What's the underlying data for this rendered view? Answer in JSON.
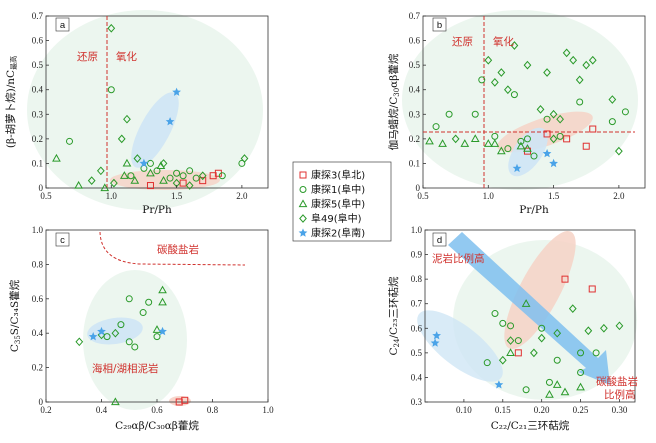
{
  "colors": {
    "kt3": "#e03030",
    "kt1": "#2a9a2a",
    "kt5": "#2a9a2a",
    "f49": "#2a9a2a",
    "kt2": "#4aa3e8",
    "green_zone": "#dcefe2",
    "red_zone": "#f6d2c6",
    "blue_zone": "#cfe6f5",
    "arrow": "#7fbfee",
    "ref_line": "#d0312d"
  },
  "legend": {
    "items": [
      {
        "key": "kt3",
        "marker": "square",
        "label": "康探3(阜北)"
      },
      {
        "key": "kt1",
        "marker": "circle",
        "label": "康探1(阜中)"
      },
      {
        "key": "kt5",
        "marker": "triangle",
        "label": "康探5(阜中)"
      },
      {
        "key": "f49",
        "marker": "diamond",
        "label": "阜49(阜中)"
      },
      {
        "key": "kt2",
        "marker": "star",
        "label": "康探2(阜南)"
      }
    ]
  },
  "chart_data": [
    {
      "panel": "a",
      "type": "scatter",
      "xlabel": "Pr/Ph",
      "ylabel": "(β-胡萝卜烷)/nC",
      "ylabel_sub": "最高",
      "xlim": [
        0.5,
        2.2
      ],
      "ylim": [
        0,
        0.7
      ],
      "xticks": [
        "0.5",
        "1.0",
        "1.5",
        "2.0"
      ],
      "yticks": [
        "0",
        "0.1",
        "0.2",
        "0.3",
        "0.4",
        "0.5",
        "0.6",
        "0.7"
      ],
      "annotations": [
        "还原",
        "氧化"
      ],
      "vline": 1.0,
      "series": [
        {
          "key": "kt3",
          "points": [
            [
              1.3,
              0.01
            ],
            [
              1.55,
              0.02
            ],
            [
              1.7,
              0.03
            ],
            [
              1.78,
              0.05
            ],
            [
              1.82,
              0.06
            ]
          ]
        },
        {
          "key": "kt1",
          "points": [
            [
              0.68,
              0.19
            ],
            [
              1.0,
              0.4
            ],
            [
              1.15,
              0.05
            ],
            [
              1.25,
              0.08
            ],
            [
              1.3,
              0.1
            ],
            [
              1.35,
              0.07
            ],
            [
              1.45,
              0.04
            ],
            [
              1.5,
              0.06
            ],
            [
              1.55,
              0.05
            ],
            [
              1.6,
              0.07
            ],
            [
              1.65,
              0.04
            ],
            [
              2.0,
              0.1
            ],
            [
              1.85,
              0.05
            ]
          ]
        },
        {
          "key": "kt5",
          "points": [
            [
              0.58,
              0.12
            ],
            [
              0.75,
              0.01
            ],
            [
              0.95,
              0.0
            ],
            [
              1.1,
              0.05
            ],
            [
              1.12,
              0.1
            ],
            [
              1.18,
              0.03
            ],
            [
              1.3,
              0.06
            ],
            [
              1.38,
              0.09
            ],
            [
              1.4,
              0.03
            ]
          ]
        },
        {
          "key": "f49",
          "points": [
            [
              1.0,
              0.65
            ],
            [
              0.92,
              0.07
            ],
            [
              0.85,
              0.03
            ],
            [
              1.02,
              0.02
            ],
            [
              1.08,
              0.2
            ],
            [
              1.12,
              0.28
            ],
            [
              1.2,
              0.12
            ],
            [
              1.4,
              0.1
            ],
            [
              1.5,
              0.02
            ],
            [
              1.6,
              0.01
            ],
            [
              1.7,
              0.05
            ],
            [
              2.02,
              0.12
            ]
          ]
        },
        {
          "key": "kt2",
          "points": [
            [
              1.25,
              0.1
            ],
            [
              1.45,
              0.27
            ],
            [
              1.5,
              0.39
            ]
          ]
        }
      ]
    },
    {
      "panel": "b",
      "type": "scatter",
      "xlabel": "Pr/Ph",
      "ylabel": "伽马蜡烷/C",
      "ylabel_sub": "30",
      "ylabel_tail": "αβ藿烷",
      "xlim": [
        0.5,
        2.2
      ],
      "ylim": [
        0,
        0.7
      ],
      "xticks": [
        "0.5",
        "1.0",
        "1.5",
        "2.0"
      ],
      "yticks": [
        "0",
        "0.1",
        "0.2",
        "0.3",
        "0.4",
        "0.5",
        "0.6",
        "0.7"
      ],
      "annotations": [
        "还原",
        "氧化"
      ],
      "vline": 1.0,
      "hline": 0.2,
      "series": [
        {
          "key": "kt3",
          "points": [
            [
              1.3,
              0.15
            ],
            [
              1.45,
              0.22
            ],
            [
              1.6,
              0.2
            ],
            [
              1.75,
              0.17
            ],
            [
              1.8,
              0.24
            ]
          ]
        },
        {
          "key": "kt1",
          "points": [
            [
              0.95,
              0.44
            ],
            [
              0.9,
              0.3
            ],
            [
              0.7,
              0.3
            ],
            [
              0.6,
              0.25
            ],
            [
              1.05,
              0.21
            ],
            [
              1.15,
              0.16
            ],
            [
              1.25,
              0.19
            ],
            [
              1.35,
              0.13
            ],
            [
              1.3,
              0.2
            ],
            [
              1.55,
              0.21
            ],
            [
              1.7,
              0.35
            ],
            [
              1.95,
              0.27
            ],
            [
              2.05,
              0.31
            ],
            [
              1.2,
              0.38
            ],
            [
              1.45,
              0.28
            ]
          ]
        },
        {
          "key": "kt5",
          "points": [
            [
              0.55,
              0.19
            ],
            [
              0.65,
              0.18
            ],
            [
              0.82,
              0.18
            ],
            [
              0.9,
              0.2
            ],
            [
              1.0,
              0.18
            ],
            [
              1.05,
              0.18
            ],
            [
              1.1,
              0.15
            ],
            [
              1.25,
              0.17
            ],
            [
              1.3,
              0.16
            ]
          ]
        },
        {
          "key": "f49",
          "points": [
            [
              1.0,
              0.52
            ],
            [
              1.1,
              0.47
            ],
            [
              1.2,
              0.58
            ],
            [
              1.05,
              0.43
            ],
            [
              1.15,
              0.4
            ],
            [
              1.3,
              0.5
            ],
            [
              1.4,
              0.32
            ],
            [
              1.45,
              0.47
            ],
            [
              1.5,
              0.3
            ],
            [
              1.55,
              0.28
            ],
            [
              1.6,
              0.55
            ],
            [
              1.65,
              0.52
            ],
            [
              1.7,
              0.44
            ],
            [
              1.75,
              0.5
            ],
            [
              1.8,
              0.52
            ],
            [
              1.95,
              0.36
            ],
            [
              2.0,
              0.15
            ],
            [
              1.5,
              0.2
            ],
            [
              0.75,
              0.2
            ]
          ]
        },
        {
          "key": "kt2",
          "points": [
            [
              1.22,
              0.08
            ],
            [
              1.45,
              0.14
            ],
            [
              1.5,
              0.1
            ]
          ]
        }
      ]
    },
    {
      "panel": "c",
      "type": "scatter",
      "xlabel": "C₂₉αβ/C₃₀αβ藿烷",
      "ylabel": "C",
      "ylabel_sub": "35",
      "ylabel_tail": "S/C₃₄S藿烷",
      "xlim": [
        0.2,
        1.0
      ],
      "ylim": [
        0,
        1.0
      ],
      "xticks": [
        "0.2",
        "0.4",
        "0.6",
        "0.8",
        "1.0"
      ],
      "yticks": [
        "0",
        "0.2",
        "0.4",
        "0.6",
        "0.8",
        "1.0"
      ],
      "annotations": [
        "碳酸盐岩",
        "海相/湖相泥岩"
      ],
      "series": [
        {
          "key": "kt3",
          "points": [
            [
              0.68,
              0.0
            ],
            [
              0.7,
              0.01
            ]
          ]
        },
        {
          "key": "kt1",
          "points": [
            [
              0.42,
              0.38
            ],
            [
              0.47,
              0.45
            ],
            [
              0.5,
              0.6
            ],
            [
              0.57,
              0.58
            ],
            [
              0.6,
              0.38
            ],
            [
              0.5,
              0.35
            ],
            [
              0.55,
              0.52
            ],
            [
              0.52,
              0.32
            ]
          ]
        },
        {
          "key": "kt5",
          "points": [
            [
              0.6,
              0.42
            ],
            [
              0.62,
              0.58
            ],
            [
              0.62,
              0.65
            ],
            [
              0.45,
              0.0
            ]
          ]
        },
        {
          "key": "f49",
          "points": [
            [
              0.32,
              0.35
            ],
            [
              0.4,
              0.39
            ],
            [
              0.45,
              0.4
            ]
          ]
        },
        {
          "key": "kt2",
          "points": [
            [
              0.37,
              0.38
            ],
            [
              0.4,
              0.41
            ],
            [
              0.62,
              0.41
            ]
          ]
        }
      ]
    },
    {
      "panel": "d",
      "type": "scatter",
      "xlabel": "C₂₂/C₂₁三环萜烷",
      "ylabel": "C",
      "ylabel_sub": "24",
      "ylabel_tail": "/C₂₃三环萜烷",
      "xlim": [
        0.05,
        0.32
      ],
      "ylim": [
        0.3,
        1.0
      ],
      "xticks": [
        "0.10",
        "0.15",
        "0.20",
        "0.25",
        "0.30"
      ],
      "yticks": [
        "0.3",
        "0.4",
        "0.5",
        "0.6",
        "0.7",
        "0.8",
        "0.9",
        "1.0"
      ],
      "annotations": [
        "泥岩比例高",
        "碳酸盐岩",
        "比例高"
      ],
      "series": [
        {
          "key": "kt3",
          "points": [
            [
              0.23,
              0.8
            ],
            [
              0.265,
              0.76
            ],
            [
              0.17,
              0.5
            ]
          ]
        },
        {
          "key": "kt1",
          "points": [
            [
              0.14,
              0.66
            ],
            [
              0.16,
              0.61
            ],
            [
              0.17,
              0.55
            ],
            [
              0.2,
              0.6
            ],
            [
              0.22,
              0.47
            ],
            [
              0.25,
              0.42
            ],
            [
              0.27,
              0.5
            ],
            [
              0.15,
              0.62
            ],
            [
              0.13,
              0.46
            ],
            [
              0.25,
              0.5
            ],
            [
              0.18,
              0.35
            ],
            [
              0.21,
              0.38
            ]
          ]
        },
        {
          "key": "kt5",
          "points": [
            [
              0.16,
              0.5
            ],
            [
              0.22,
              0.37
            ],
            [
              0.23,
              0.34
            ],
            [
              0.21,
              0.33
            ],
            [
              0.25,
              0.36
            ],
            [
              0.18,
              0.7
            ]
          ]
        },
        {
          "key": "f49",
          "points": [
            [
              0.16,
              0.55
            ],
            [
              0.2,
              0.56
            ],
            [
              0.22,
              0.58
            ],
            [
              0.24,
              0.68
            ],
            [
              0.26,
              0.59
            ],
            [
              0.28,
              0.6
            ],
            [
              0.3,
              0.61
            ],
            [
              0.15,
              0.47
            ],
            [
              0.19,
              0.5
            ]
          ]
        },
        {
          "key": "kt2",
          "points": [
            [
              0.065,
              0.57
            ],
            [
              0.063,
              0.54
            ],
            [
              0.145,
              0.37
            ]
          ]
        }
      ]
    }
  ]
}
